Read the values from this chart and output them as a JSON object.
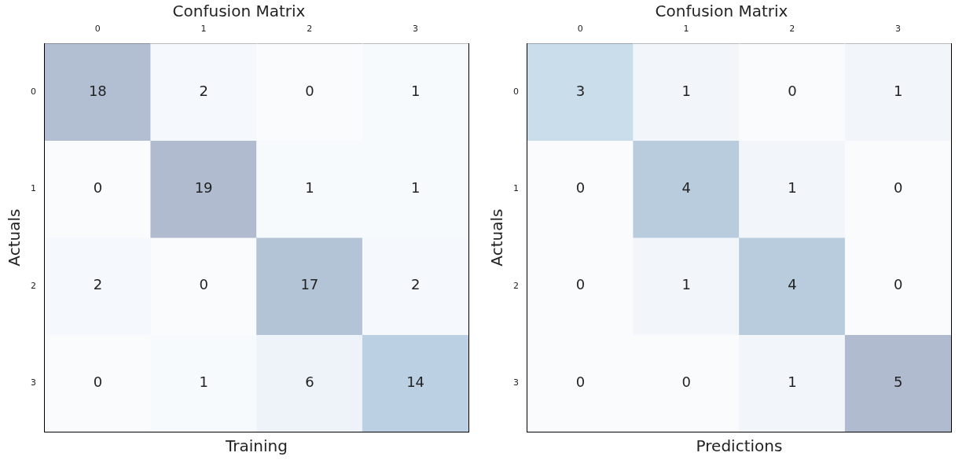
{
  "chart_data": [
    {
      "type": "heatmap",
      "title": "Confusion Matrix",
      "xlabel": "Training",
      "ylabel": "Actuals",
      "categories": [
        "0",
        "1",
        "2",
        "3"
      ],
      "y_categories": [
        "0",
        "1",
        "2",
        "3"
      ],
      "cells": [
        [
          18,
          2,
          0,
          1
        ],
        [
          0,
          19,
          1,
          1
        ],
        [
          2,
          0,
          17,
          2
        ],
        [
          0,
          1,
          6,
          14
        ]
      ],
      "data_labels": true
    },
    {
      "type": "heatmap",
      "title": "Confusion Matrix",
      "xlabel": "Predictions",
      "ylabel": "Actuals",
      "categories": [
        "0",
        "1",
        "2",
        "3"
      ],
      "y_categories": [
        "0",
        "1",
        "2",
        "3"
      ],
      "cells": [
        [
          3,
          1,
          0,
          1
        ],
        [
          0,
          4,
          1,
          0
        ],
        [
          0,
          1,
          4,
          0
        ],
        [
          0,
          0,
          1,
          5
        ]
      ],
      "data_labels": true
    }
  ]
}
